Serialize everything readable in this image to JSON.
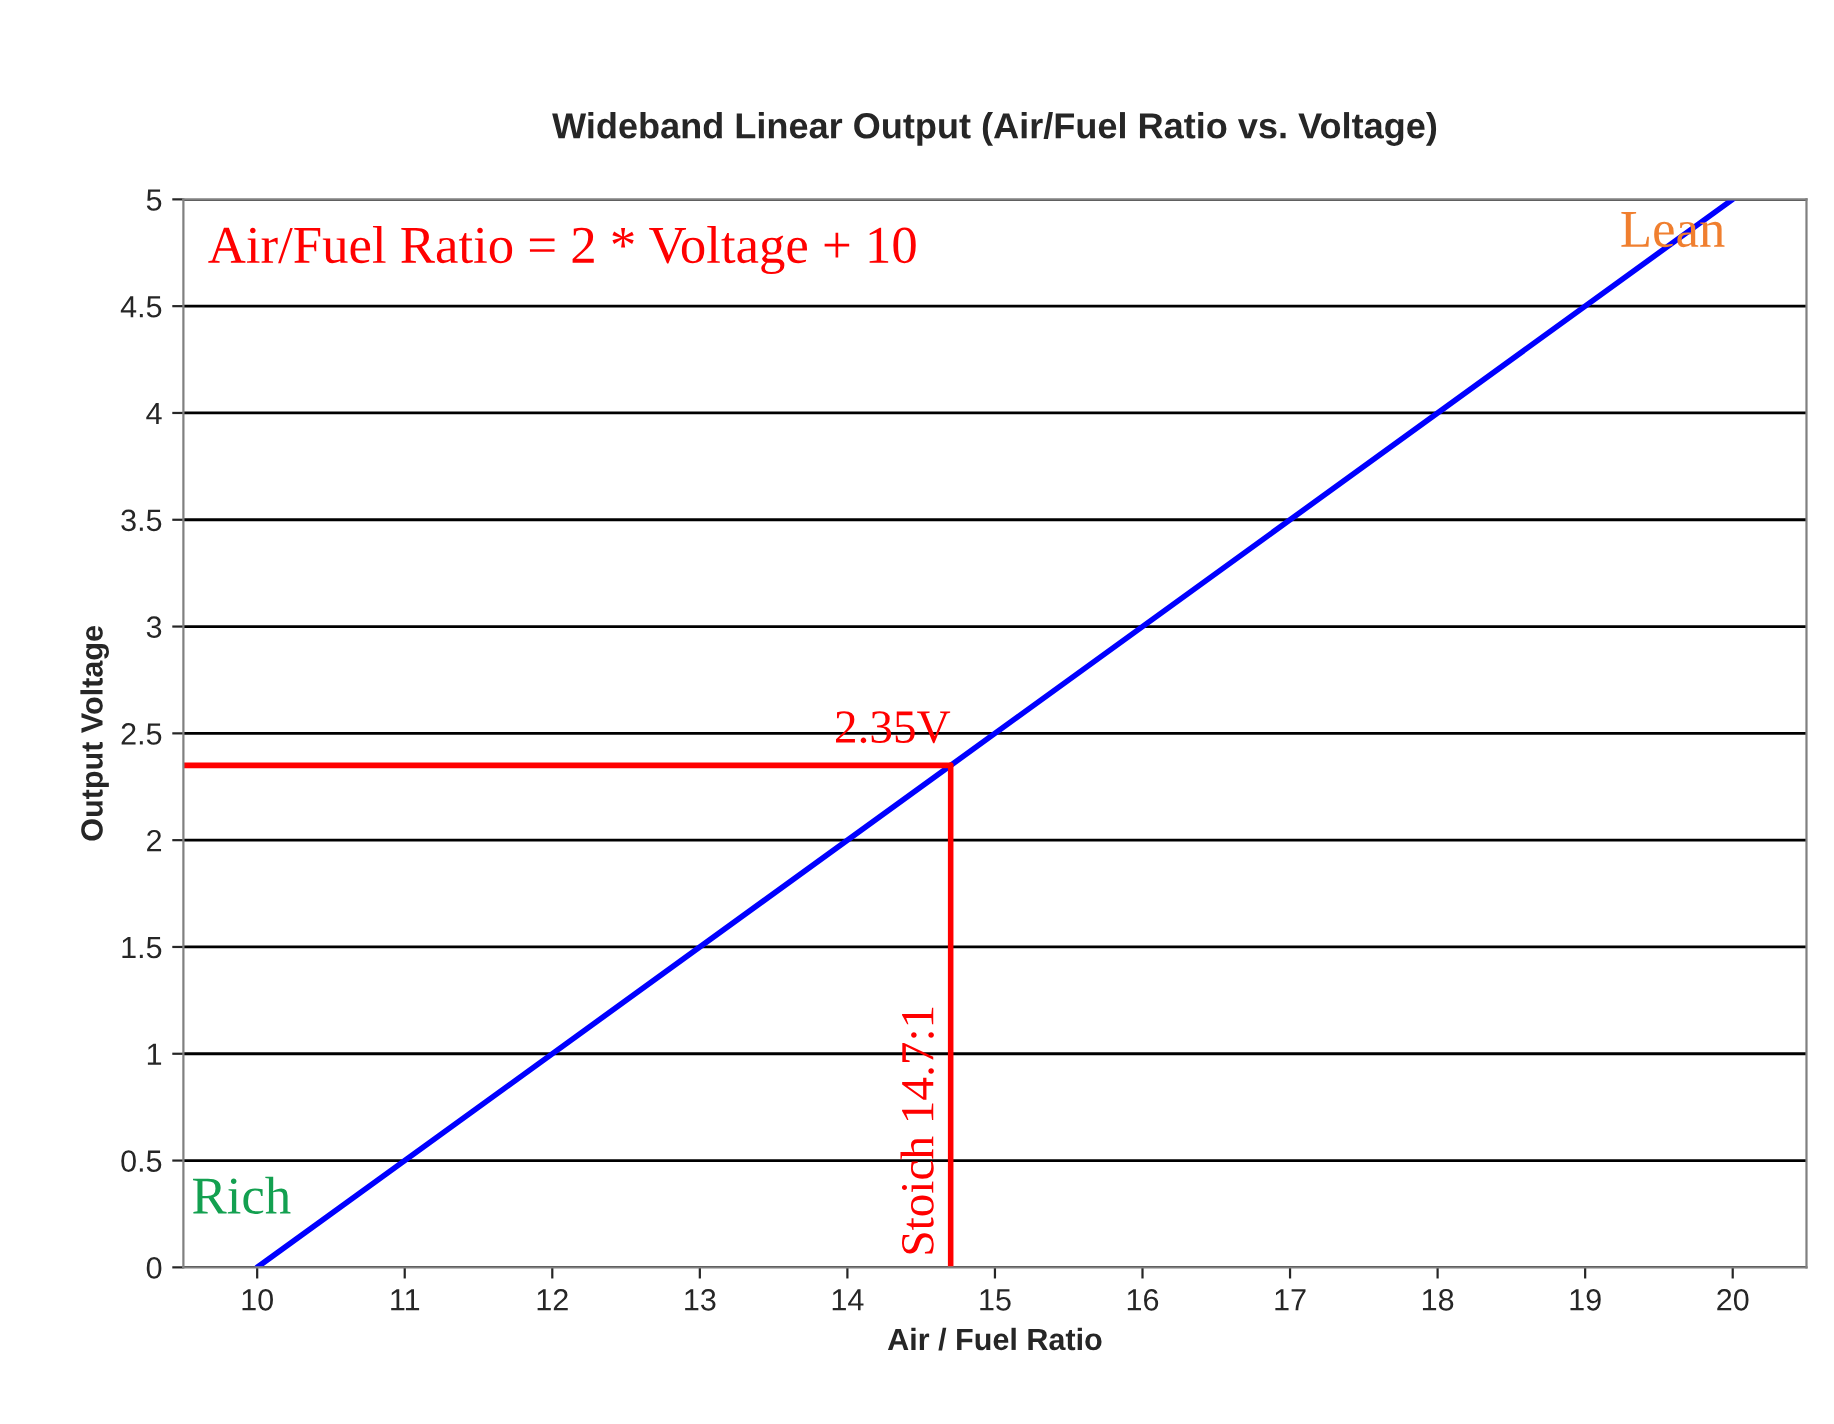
{
  "chart_data": {
    "type": "line",
    "title": "Wideband Linear Output (Air/Fuel Ratio vs. Voltage)",
    "xlabel": "Air / Fuel Ratio",
    "ylabel": "Output Voltage",
    "series": [
      {
        "color": "#0000ff",
        "x": [
          10,
          20
        ],
        "values": [
          0,
          5
        ]
      }
    ],
    "xlim": [
      9.5,
      20.5
    ],
    "xticks": [
      10,
      11,
      12,
      13,
      14,
      15,
      16,
      17,
      18,
      19,
      20
    ],
    "ylim": [
      0,
      5
    ],
    "yticks": [
      0,
      0.5,
      1,
      1.5,
      2,
      2.5,
      3,
      3.5,
      4,
      4.5,
      5
    ],
    "grid": "y",
    "ref_lines": [
      {
        "axis": "x",
        "value": 14.7,
        "label": "Stoich 14.7:1",
        "color": "#ff0000"
      },
      {
        "axis": "y",
        "value": 2.35,
        "label": "2.35V",
        "color": "#ff0000"
      }
    ],
    "annotations": [
      "Air/Fuel Ratio = 2 * Voltage + 10",
      "Lean",
      "Rich"
    ]
  }
}
